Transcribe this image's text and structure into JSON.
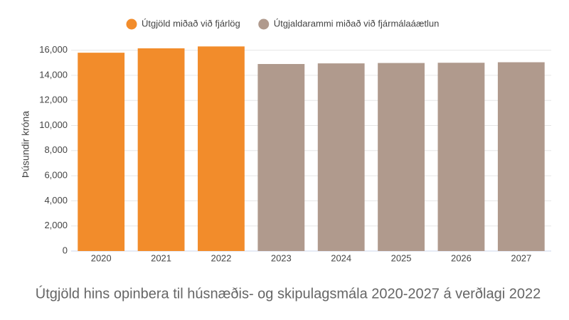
{
  "chart_data": {
    "type": "bar",
    "title": "Útgjöld hins opinbera til húsnæðis- og skipulagsmála 2020-2027 á verðlagi 2022",
    "y_label": "Þúsundir króna",
    "categories": [
      "2020",
      "2021",
      "2022",
      "2023",
      "2024",
      "2025",
      "2026",
      "2027"
    ],
    "series": [
      {
        "name": "Útgjöld miðað við fjárlög",
        "color": "#f28c2b",
        "values": [
          15800,
          16150,
          16300,
          null,
          null,
          null,
          null,
          null
        ]
      },
      {
        "name": "Útgjaldarammi miðað við fjármálaáætlun",
        "color": "#b09a8d",
        "values": [
          null,
          null,
          null,
          14900,
          14950,
          14980,
          15000,
          15040
        ]
      }
    ],
    "ylim": [
      0,
      16600
    ],
    "yticks": [
      0,
      {
        "value": 2000,
        "label": "2,000"
      },
      {
        "value": 4000,
        "label": "4,000"
      },
      {
        "value": 6000,
        "label": "6,000"
      },
      {
        "value": 8000,
        "label": "8,000"
      },
      {
        "value": 10000,
        "label": "10,000"
      },
      {
        "value": 12000,
        "label": "12,000"
      },
      {
        "value": 14000,
        "label": "14,000"
      },
      {
        "value": 16000,
        "label": "16,000"
      }
    ],
    "grid": true
  }
}
